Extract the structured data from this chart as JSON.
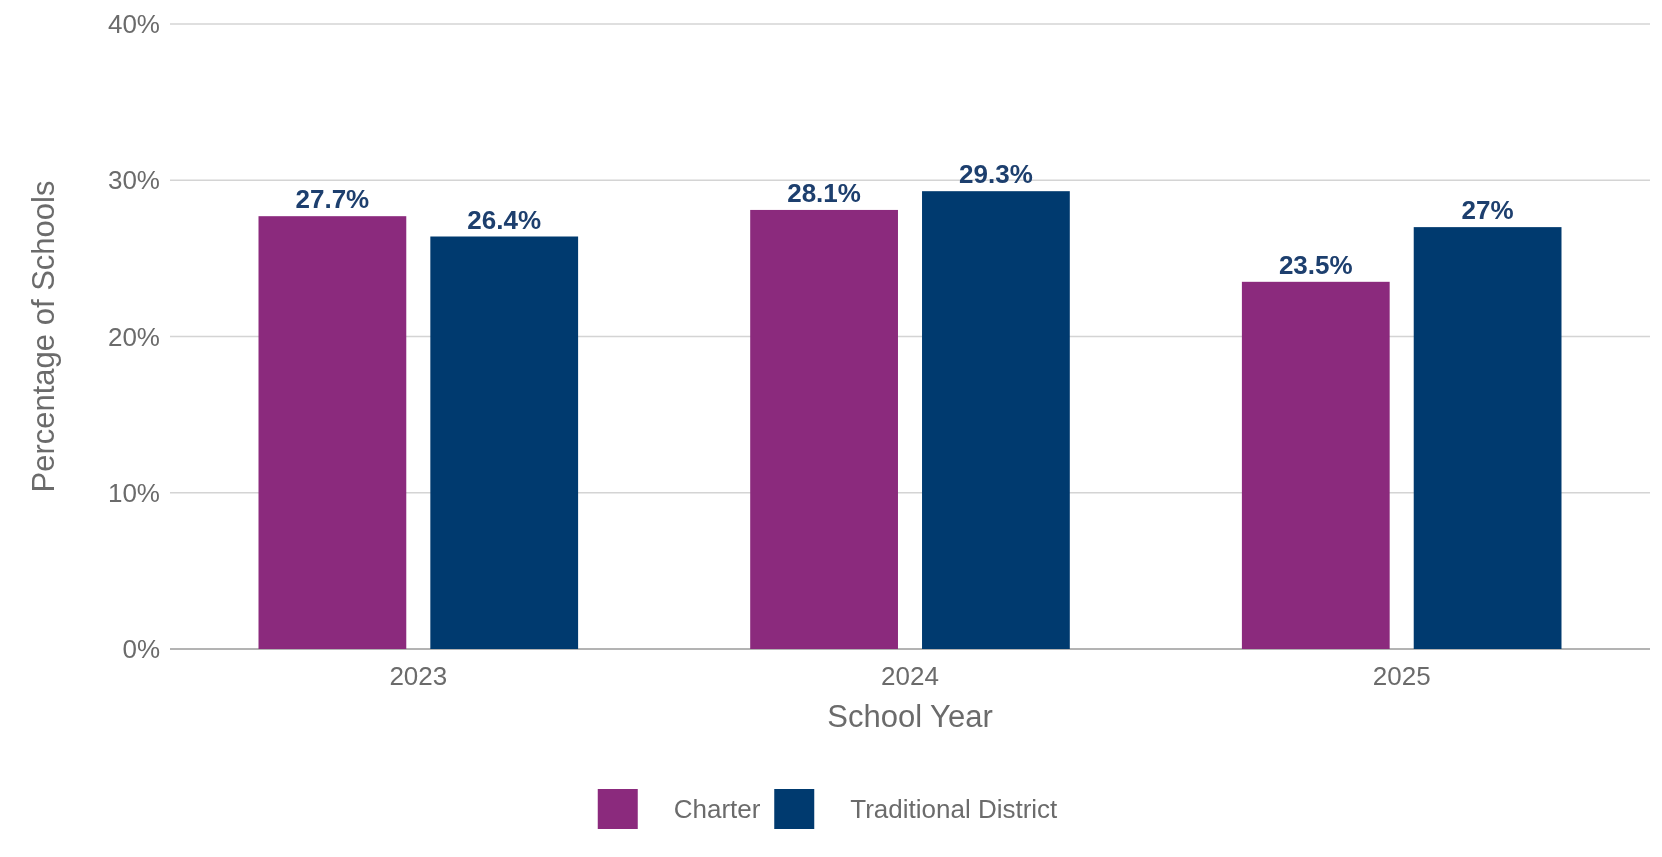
{
  "chart_data": {
    "type": "bar",
    "xlabel": "School Year",
    "ylabel": "Percentage of Schools",
    "categories": [
      "2023",
      "2024",
      "2025"
    ],
    "series": [
      {
        "name": "Charter",
        "color": "#8b2a7d",
        "values": [
          27.7,
          28.1,
          23.5
        ],
        "value_labels": [
          "27.7%",
          "28.1%",
          "23.5%"
        ]
      },
      {
        "name": "Traditional District",
        "color": "#003a6f",
        "values": [
          26.4,
          29.3,
          27
        ],
        "value_labels": [
          "26.4%",
          "29.3%",
          "27%"
        ]
      }
    ],
    "ylim": [
      0,
      40
    ],
    "yticks": [
      {
        "value": 0,
        "label": "0%"
      },
      {
        "value": 10,
        "label": "10%"
      },
      {
        "value": 20,
        "label": "20%"
      },
      {
        "value": 30,
        "label": "30%"
      },
      {
        "value": 40,
        "label": "40%"
      }
    ],
    "grid": "y",
    "legend": "bottom"
  }
}
